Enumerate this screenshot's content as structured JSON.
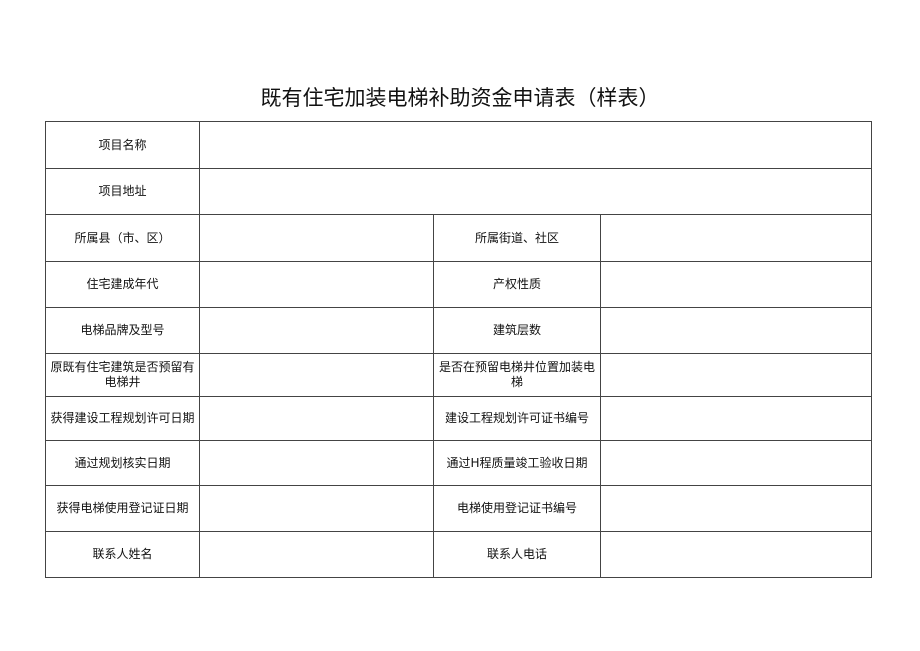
{
  "title": "既有住宅加装电梯补助资金申请表（样表）",
  "rows_full": [
    "项目名称",
    "项目地址"
  ],
  "rows_pair": [
    [
      "所属县（市、区）",
      "所属街道、社区"
    ],
    [
      "住宅建成年代",
      "产权性质"
    ],
    [
      "电梯品牌及型号",
      "建筑层数"
    ],
    [
      "原既有住宅建筑是否预留有电梯井",
      "是否在预留电梯井位置加装电梯"
    ],
    [
      "获得建设工程规划许可日期",
      "建设工程规划许可证书编号"
    ],
    [
      "通过规划核实日期",
      "通过H程质量竣工验收日期"
    ],
    [
      "获得电梯使用登记证日期",
      "电梯使用登记证书编号"
    ],
    [
      "联系人姓名",
      "联系人电话"
    ]
  ]
}
